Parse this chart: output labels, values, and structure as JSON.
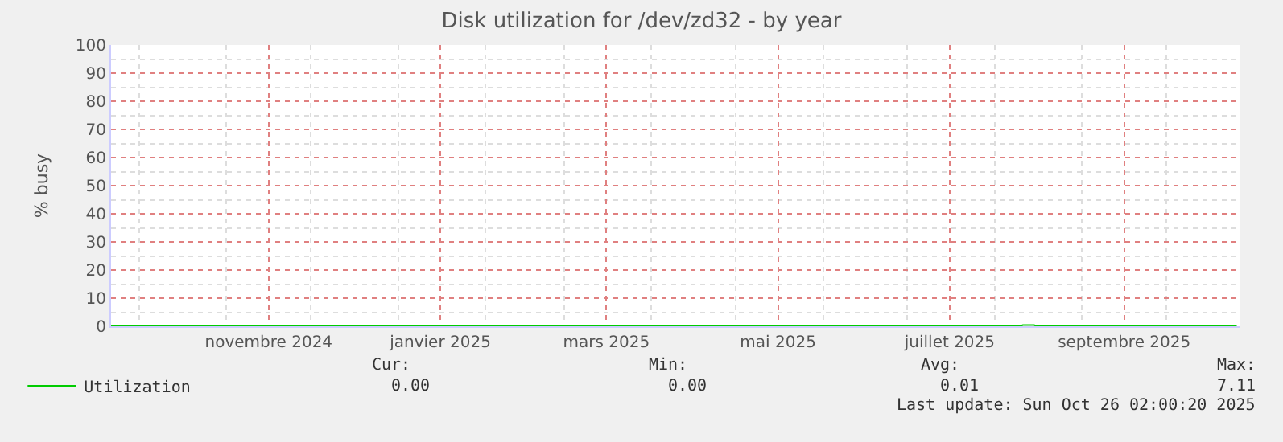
{
  "chart_data": {
    "type": "line",
    "title": "Disk utilization for /dev/zd32 - by year",
    "ylabel": "% busy",
    "xlim": [
      "2024-09-21",
      "2025-10-27"
    ],
    "xticks": [
      {
        "value": "2024-11-16",
        "label": "novembre 2024"
      },
      {
        "value": "2025-01-16",
        "label": "janvier 2025"
      },
      {
        "value": "2025-03-16",
        "label": "mars 2025"
      },
      {
        "value": "2025-05-16",
        "label": "mai 2025"
      },
      {
        "value": "2025-07-16",
        "label": "juillet 2025"
      },
      {
        "value": "2025-09-16",
        "label": "septembre 2025"
      }
    ],
    "ylim": [
      0,
      100
    ],
    "yticks": [
      0,
      10,
      20,
      30,
      40,
      50,
      60,
      70,
      80,
      90,
      100
    ],
    "grid": true,
    "legend": "bottom left",
    "marker": "none",
    "line_style": "solid",
    "series": [
      {
        "name": "Utilization",
        "color": "#00cc00",
        "x": [
          "2024-09-21",
          "2025-08-10",
          "2025-08-11",
          "2025-08-15",
          "2025-08-16",
          "2025-10-26"
        ],
        "values": [
          0,
          0,
          0.4,
          0.4,
          0,
          0
        ]
      }
    ],
    "annotations": [
      "Cur:",
      "0.00",
      "Min:",
      "0.00",
      "Avg:",
      "0.01",
      "Max:",
      "7.11",
      "Last update: Sun Oct 26 02:00:20 2025"
    ]
  }
}
